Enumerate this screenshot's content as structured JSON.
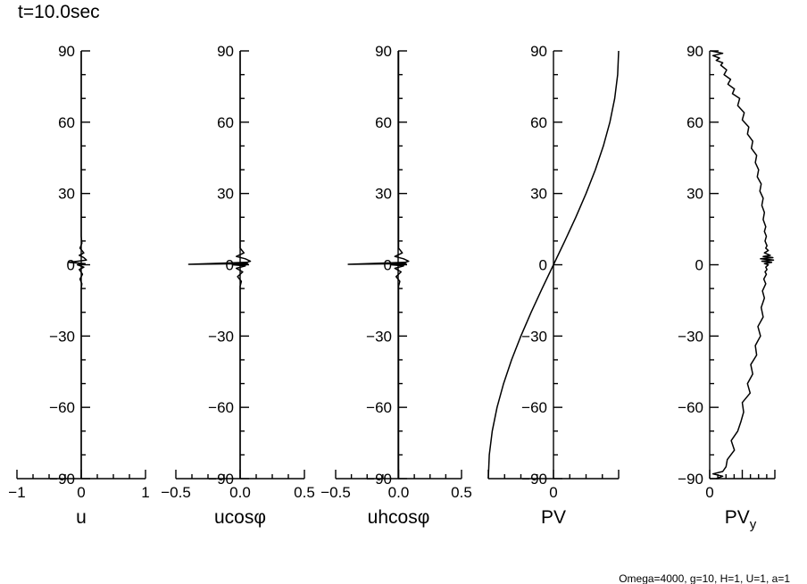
{
  "title": "t=10.0sec",
  "footer": "Omega=4000, g=10, H=1, U=1, a=1",
  "chart_data": [
    {
      "type": "line",
      "xlabel": "u",
      "xlabel_sub": "",
      "x_ticks": [
        "−1",
        "0",
        "1"
      ],
      "xlim": [
        -1,
        1
      ],
      "ylim": [
        -90,
        90
      ],
      "y_ticks": [
        "90",
        "60",
        "30",
        "0",
        "−30",
        "−60",
        "−90"
      ],
      "y_tick_values": [
        90,
        60,
        30,
        0,
        -30,
        -60,
        -90
      ],
      "series": [
        {
          "x": [
            0,
            0,
            0.01,
            -0.02,
            0.02,
            -0.03,
            0.04,
            -0.06,
            0.06,
            -0.2,
            -0.05,
            0.08,
            0.04,
            -0.03,
            0.04,
            -0.02,
            0.01,
            0,
            0
          ],
          "y": [
            -90,
            -10,
            -8,
            -6,
            -4,
            -2,
            -1,
            0,
            0.5,
            1,
            1.5,
            2,
            3,
            4,
            5,
            7,
            9,
            12,
            90
          ]
        }
      ]
    },
    {
      "type": "line",
      "xlabel": "ucosφ",
      "xlabel_sub": "",
      "x_ticks": [
        "−0.5",
        "0.0",
        "0.5"
      ],
      "xlim": [
        -0.5,
        0.5
      ],
      "ylim": [
        -90,
        90
      ],
      "y_ticks": [
        "90",
        "60",
        "30",
        "0",
        "−30",
        "−60",
        "−90"
      ],
      "y_tick_values": [
        90,
        60,
        30,
        0,
        -30,
        -60,
        -90
      ],
      "series": [
        {
          "x": [
            0,
            0,
            0.01,
            -0.02,
            0.02,
            -0.03,
            0.04,
            -0.06,
            0.06,
            -0.4,
            0.05,
            0.08,
            0.04,
            -0.03,
            0.03,
            0,
            0
          ],
          "y": [
            -90,
            -9,
            -7,
            -5,
            -3,
            -1.5,
            -0.5,
            0,
            0.5,
            0.2,
            1,
            1.5,
            2.5,
            3.5,
            5,
            7,
            90
          ]
        }
      ]
    },
    {
      "type": "line",
      "xlabel": "uhcosφ",
      "xlabel_sub": "",
      "x_ticks": [
        "−0.5",
        "0.0",
        "0.5"
      ],
      "xlim": [
        -0.5,
        0.5
      ],
      "ylim": [
        -90,
        90
      ],
      "y_ticks": [
        "90",
        "60",
        "30",
        "0",
        "−30",
        "−60",
        "−90"
      ],
      "y_tick_values": [
        90,
        60,
        30,
        0,
        -30,
        -60,
        -90
      ],
      "series": [
        {
          "x": [
            0,
            0,
            0.01,
            -0.02,
            0.02,
            -0.03,
            0.04,
            -0.06,
            0.06,
            -0.4,
            0.05,
            0.08,
            0.04,
            -0.03,
            0.03,
            0,
            0
          ],
          "y": [
            -90,
            -9,
            -7,
            -5,
            -3,
            -1.5,
            -0.5,
            0,
            0.5,
            0.2,
            1,
            1.5,
            2.5,
            3.5,
            5,
            7,
            90
          ]
        }
      ]
    },
    {
      "type": "line",
      "xlabel": "PV",
      "xlabel_sub": "",
      "x_ticks": [
        "0"
      ],
      "x_tick_values": [
        0
      ],
      "xlim": [
        -1,
        1
      ],
      "ylim": [
        -90,
        90
      ],
      "y_ticks": [
        "90",
        "60",
        "30",
        "0",
        "−30",
        "−60",
        "−90"
      ],
      "y_tick_values": [
        90,
        60,
        30,
        0,
        -30,
        -60,
        -90
      ],
      "series": [
        {
          "x": [
            -1,
            -0.985,
            -0.94,
            -0.866,
            -0.766,
            -0.643,
            -0.5,
            -0.342,
            -0.174,
            0,
            0.174,
            0.342,
            0.5,
            0.643,
            0.766,
            0.866,
            0.94,
            0.985,
            1
          ],
          "y": [
            -90,
            -80,
            -70,
            -60,
            -50,
            -40,
            -30,
            -20,
            -10,
            0,
            10,
            20,
            30,
            40,
            50,
            60,
            70,
            80,
            90
          ]
        }
      ]
    },
    {
      "type": "line",
      "xlabel": "PV",
      "xlabel_sub": "y",
      "x_ticks": [
        "0"
      ],
      "x_tick_values": [
        0
      ],
      "xlim": [
        0,
        1
      ],
      "ylim": [
        -90,
        90
      ],
      "y_ticks": [
        "90",
        "60",
        "30",
        "0",
        "−30",
        "−60",
        "−90"
      ],
      "y_tick_values": [
        90,
        60,
        30,
        0,
        -30,
        -60,
        -90
      ],
      "series": [
        {
          "x": [
            0.1,
            0.2,
            0.05,
            0.2,
            0.25,
            0.27,
            0.38,
            0.33,
            0.43,
            0.48,
            0.52,
            0.5,
            0.62,
            0.58,
            0.66,
            0.63,
            0.72,
            0.7,
            0.78,
            0.74,
            0.82,
            0.79,
            0.84,
            0.81,
            0.86,
            0.83,
            0.87,
            0.85,
            0.88,
            0.86,
            0.9,
            0.84,
            0.95,
            0.8,
            0.98,
            0.78,
            0.97,
            0.82,
            0.93,
            0.84,
            0.9,
            0.86,
            0.88,
            0.85,
            0.87,
            0.84,
            0.86,
            0.82,
            0.84,
            0.8,
            0.82,
            0.77,
            0.79,
            0.73,
            0.75,
            0.7,
            0.72,
            0.64,
            0.66,
            0.58,
            0.6,
            0.5,
            0.53,
            0.43,
            0.46,
            0.35,
            0.38,
            0.28,
            0.32,
            0.22,
            0.26,
            0.17,
            0.2,
            0.1,
            0.15,
            0.05,
            0.2,
            0.02
          ],
          "y": [
            -90,
            -89,
            -88,
            -87,
            -85,
            -82,
            -78,
            -74,
            -70,
            -66,
            -62,
            -58,
            -54,
            -50,
            -46,
            -42,
            -38,
            -34,
            -30,
            -26,
            -22,
            -18,
            -14,
            -11,
            -8,
            -6,
            -4,
            -3,
            -2,
            -1,
            0,
            0.5,
            1,
            1.5,
            2,
            2.5,
            3,
            3.5,
            4,
            5,
            6,
            7,
            8,
            10,
            12,
            14,
            16,
            19,
            22,
            25,
            28,
            31,
            34,
            37,
            40,
            43,
            46,
            49,
            52,
            55,
            58,
            61,
            64,
            67,
            70,
            72,
            74,
            76,
            78,
            80,
            82,
            84,
            85,
            86,
            87,
            88,
            89,
            90
          ]
        }
      ]
    }
  ]
}
